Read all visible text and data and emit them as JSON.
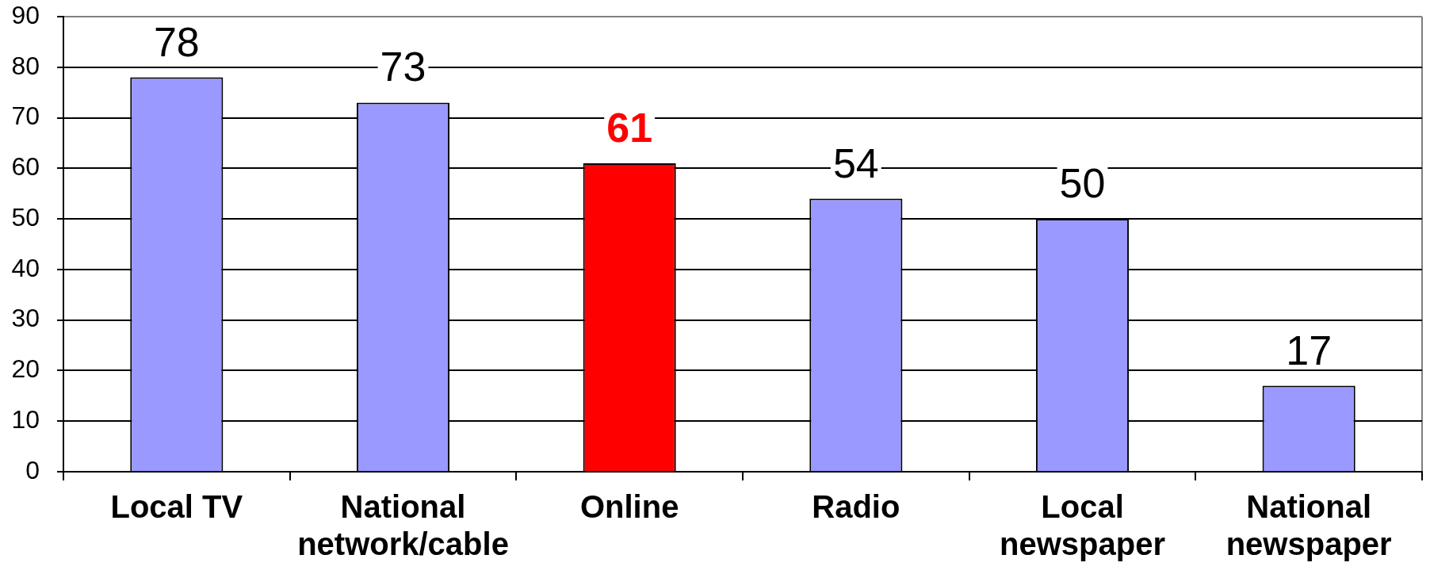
{
  "chart_data": {
    "type": "bar",
    "categories": [
      "Local TV",
      "National network/cable",
      "Online",
      "Radio",
      "Local newspaper",
      "National newspaper"
    ],
    "values": [
      78,
      73,
      61,
      54,
      50,
      17
    ],
    "colors": [
      "#9999ff",
      "#9999ff",
      "#ff0000",
      "#9999ff",
      "#9999ff",
      "#9999ff"
    ],
    "ylim": [
      0,
      90
    ],
    "yticks": [
      0,
      10,
      20,
      30,
      40,
      50,
      60,
      70,
      80,
      90
    ],
    "grid": "y",
    "data_labels": true,
    "legend": false
  }
}
